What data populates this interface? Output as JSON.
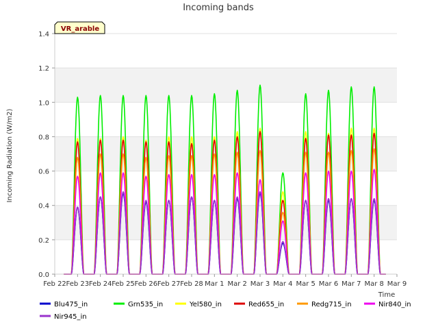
{
  "chart_data": {
    "type": "line",
    "title": "Incoming bands",
    "xlabel": "Time",
    "ylabel": "Incoming Radiation (W/m2)",
    "site_label": "VR_arable",
    "ylim": [
      0,
      1.4
    ],
    "yticks": [
      "0.0",
      "0.2",
      "0.4",
      "0.6",
      "0.8",
      "1.0",
      "1.2",
      "1.4"
    ],
    "x_ticks": [
      "Feb 22",
      "Feb 23",
      "Feb 24",
      "Feb 25",
      "Feb 26",
      "Feb 27",
      "Feb 28",
      "Mar 1",
      "Mar 2",
      "Mar 3",
      "Mar 4",
      "Mar 5",
      "Mar 6",
      "Mar 7",
      "Mar 8",
      "Mar 9"
    ],
    "grid": true,
    "legend_position": "bottom",
    "days": [
      "Feb 23",
      "Feb 24",
      "Feb 25",
      "Feb 26",
      "Feb 27",
      "Feb 28",
      "Mar 1",
      "Mar 2",
      "Mar 3",
      "Mar 4",
      "Mar 5",
      "Mar 6",
      "Mar 7",
      "Mar 8"
    ],
    "series": [
      {
        "name": "Blu475_in",
        "color": "#0000cc",
        "daily_peak": [
          0.39,
          0.45,
          0.47,
          0.42,
          0.43,
          0.45,
          0.43,
          0.44,
          0.47,
          0.18,
          0.43,
          0.43,
          0.44,
          0.43
        ]
      },
      {
        "name": "Grn535_in",
        "color": "#00ee00",
        "daily_peak": [
          1.03,
          1.04,
          1.04,
          1.04,
          1.04,
          1.04,
          1.05,
          1.07,
          1.1,
          0.59,
          1.05,
          1.07,
          1.09,
          1.09
        ]
      },
      {
        "name": "Yel580_in",
        "color": "#ffff00",
        "daily_peak": [
          0.79,
          0.79,
          0.8,
          0.78,
          0.8,
          0.8,
          0.8,
          0.83,
          0.85,
          0.48,
          0.83,
          0.82,
          0.85,
          0.85
        ]
      },
      {
        "name": "Red655_in",
        "color": "#dd0000",
        "daily_peak": [
          0.77,
          0.78,
          0.78,
          0.77,
          0.77,
          0.76,
          0.78,
          0.8,
          0.83,
          0.43,
          0.79,
          0.81,
          0.81,
          0.82
        ]
      },
      {
        "name": "Redg715_in",
        "color": "#ff9900",
        "daily_peak": [
          0.68,
          0.7,
          0.7,
          0.68,
          0.69,
          0.69,
          0.7,
          0.71,
          0.72,
          0.36,
          0.71,
          0.71,
          0.72,
          0.73
        ]
      },
      {
        "name": "Nir840_in",
        "color": "#ee00ee",
        "daily_peak": [
          0.57,
          0.59,
          0.59,
          0.57,
          0.58,
          0.58,
          0.58,
          0.59,
          0.55,
          0.31,
          0.59,
          0.6,
          0.6,
          0.61
        ]
      },
      {
        "name": "Nir945_in",
        "color": "#9933cc",
        "daily_peak": [
          0.39,
          0.45,
          0.48,
          0.43,
          0.43,
          0.45,
          0.43,
          0.45,
          0.48,
          0.19,
          0.43,
          0.44,
          0.44,
          0.44
        ]
      }
    ]
  }
}
